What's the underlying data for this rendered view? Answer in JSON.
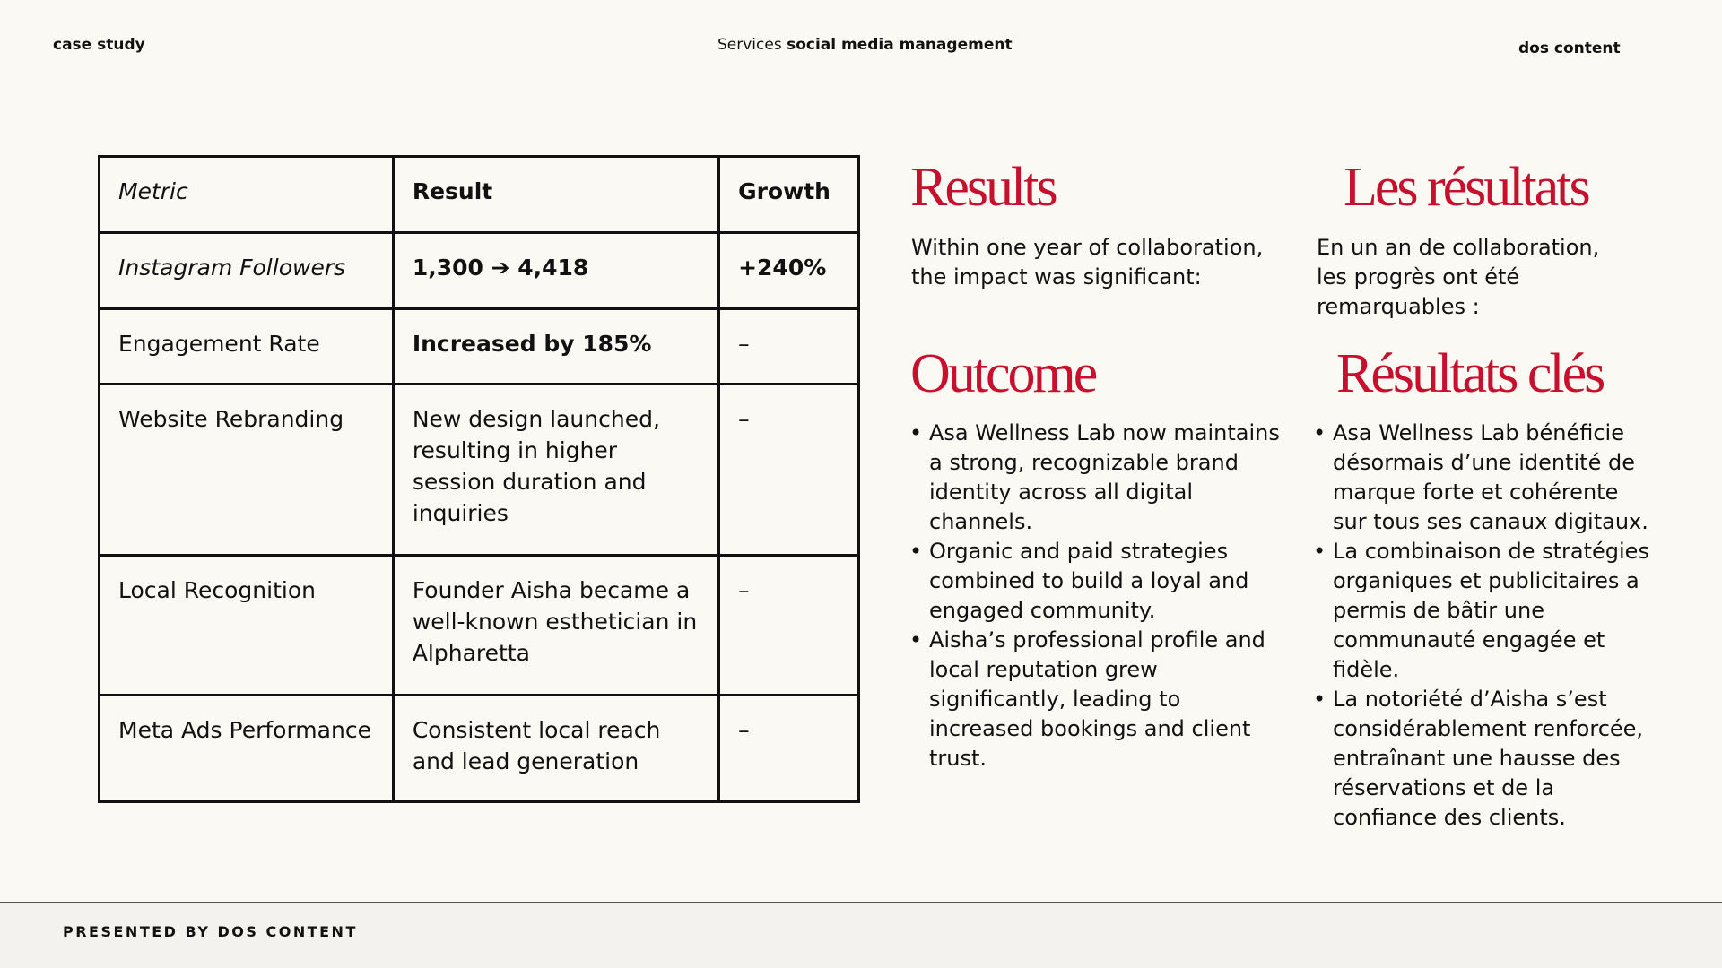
{
  "header": {
    "left": "case study",
    "center_prefix": "Services",
    "center_bold": "social media management",
    "right": "dos content"
  },
  "table": {
    "headers": [
      "Metric",
      "Result",
      "Growth"
    ],
    "rows": [
      [
        "Instagram Followers",
        "1,300 ➔ 4,418",
        "+240%"
      ],
      [
        "Engagement Rate",
        "Increased by 185%",
        "–"
      ],
      [
        "Website Rebranding",
        "New design launched, resulting in higher session duration and inquiries",
        "–"
      ],
      [
        "Local Recognition",
        "Founder Aisha became a well-known esthetician in Alpharetta",
        "–"
      ],
      [
        "Meta Ads Performance",
        "Consistent local reach and lead generation",
        "–"
      ]
    ]
  },
  "en": {
    "results_title": "Results",
    "results_text": "Within one year of collaboration, the impact was significant:",
    "outcome_title": "Outcome",
    "bullets": [
      "Asa Wellness Lab now maintains a strong, recognizable brand identity across all digital channels.",
      "Organic and paid strategies combined to build a loyal and engaged community.",
      "Aisha’s professional profile and local reputation grew significantly, leading to increased bookings and client trust."
    ]
  },
  "fr": {
    "results_title": "Les résultats",
    "results_text": "En un an de collaboration, les progrès ont été remarquables :",
    "outcome_title": "Résultats clés",
    "bullets": [
      "Asa Wellness Lab bénéficie désormais d’une identité de marque forte et cohérente sur tous ses canaux digitaux.",
      "La combinaison de stratégies organiques et publicitaires a permis de bâtir une communauté engagée et fidèle.",
      "La notoriété d’Aisha s’est considérablement renforcée, entraînant une hausse des réservations et de la confiance des clients."
    ]
  },
  "footer": {
    "text": "PRESENTED BY DOS CONTENT"
  },
  "colors": {
    "accent": "#c8102e",
    "background": "#fbf9f3"
  }
}
